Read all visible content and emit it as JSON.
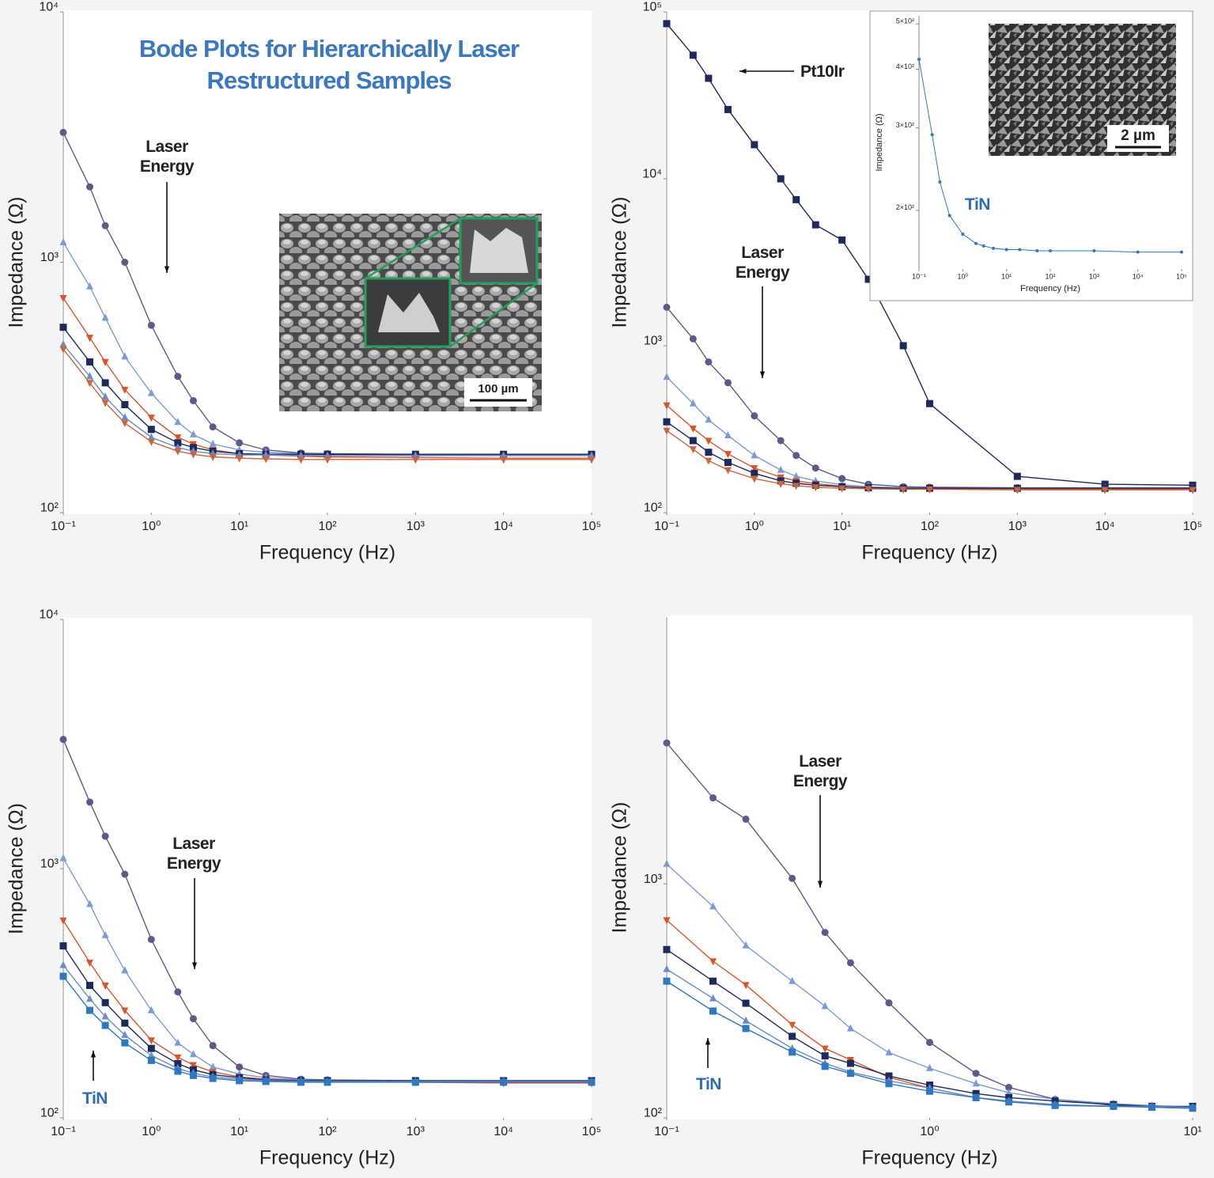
{
  "chart_data": [
    {
      "type": "line",
      "title": "Bode Plots for Hierarchically Laser Restructured Samples",
      "xlabel": "Frequency (Hz)",
      "ylabel": "Impedance (Ω)",
      "xscale": "log",
      "yscale": "log",
      "xlim": [
        0.1,
        100000
      ],
      "ylim": [
        100,
        10000
      ],
      "xticks": [
        {
          "value": 0.1,
          "label": "10⁻¹"
        },
        {
          "value": 1,
          "label": "10⁰"
        },
        {
          "value": 10,
          "label": "10¹"
        },
        {
          "value": 100,
          "label": "10²"
        },
        {
          "value": 1000,
          "label": "10³"
        },
        {
          "value": 10000,
          "label": "10⁴"
        },
        {
          "value": 100000,
          "label": "10⁵"
        }
      ],
      "yticks": [
        {
          "value": 100,
          "label": "10²"
        },
        {
          "value": 1000,
          "label": "10³"
        },
        {
          "value": 10000,
          "label": "10⁴"
        }
      ],
      "annotations": [
        "Laser Energy"
      ],
      "image_scale_label": "100 µm",
      "x": [
        0.1,
        0.2,
        0.3,
        0.5,
        1,
        2,
        3,
        5,
        10,
        20,
        50,
        100,
        1000,
        10000,
        100000
      ],
      "series": [
        {
          "color": "#5d5a8a",
          "marker": "circle",
          "values": [
            3300,
            2000,
            1400,
            1000,
            560,
            350,
            280,
            220,
            190,
            178,
            173,
            172,
            171,
            170,
            170
          ]
        },
        {
          "color": "#7a9bd6",
          "marker": "triangle-up",
          "values": [
            1200,
            800,
            600,
            420,
            300,
            230,
            205,
            188,
            178,
            174,
            172,
            171,
            170,
            170,
            170
          ]
        },
        {
          "color": "#d9542b",
          "marker": "triangle-down",
          "values": [
            720,
            500,
            400,
            310,
            240,
            200,
            188,
            178,
            172,
            170,
            168,
            167,
            166,
            165,
            165
          ]
        },
        {
          "color": "#1f2a5c",
          "marker": "square",
          "values": [
            550,
            400,
            330,
            270,
            215,
            190,
            182,
            176,
            172,
            171,
            171,
            171,
            171,
            171,
            171
          ]
        },
        {
          "color": "#6d8bc9",
          "marker": "triangle-up",
          "values": [
            470,
            350,
            290,
            240,
            200,
            182,
            176,
            172,
            170,
            170,
            169,
            169,
            169,
            169,
            169
          ]
        },
        {
          "color": "#c9663f",
          "marker": "triangle-down",
          "values": [
            450,
            330,
            275,
            228,
            192,
            176,
            171,
            167,
            165,
            164,
            163,
            163,
            163,
            163,
            163
          ]
        }
      ]
    },
    {
      "type": "line",
      "xlabel": "Frequency (Hz)",
      "ylabel": "Impedance (Ω)",
      "xscale": "log",
      "yscale": "log",
      "xlim": [
        0.1,
        100000
      ],
      "ylim": [
        100,
        100000
      ],
      "xticks": [
        {
          "value": 0.1,
          "label": "10⁻¹"
        },
        {
          "value": 1,
          "label": "10⁰"
        },
        {
          "value": 10,
          "label": "10¹"
        },
        {
          "value": 100,
          "label": "10²"
        },
        {
          "value": 1000,
          "label": "10³"
        },
        {
          "value": 10000,
          "label": "10⁴"
        },
        {
          "value": 100000,
          "label": "10⁵"
        }
      ],
      "yticks": [
        {
          "value": 100,
          "label": "10²"
        },
        {
          "value": 1000,
          "label": "10³"
        },
        {
          "value": 10000,
          "label": "10⁴"
        },
        {
          "value": 100000,
          "label": "10⁵"
        }
      ],
      "annotations": [
        "Pt10Ir",
        "Laser Energy"
      ],
      "x": [
        0.1,
        0.2,
        0.3,
        0.5,
        1,
        2,
        3,
        5,
        10,
        20,
        50,
        100,
        1000,
        10000,
        100000
      ],
      "series": [
        {
          "color": "#1f2a5c",
          "marker": "square",
          "values": [
            85000,
            55000,
            40000,
            26000,
            16000,
            10000,
            7500,
            5300,
            4300,
            2500,
            1000,
            450,
            165,
            148,
            146
          ]
        },
        {
          "color": "#5d5a8a",
          "marker": "circle",
          "values": [
            1700,
            1100,
            800,
            600,
            380,
            270,
            220,
            185,
            160,
            148,
            143,
            142,
            141,
            141,
            141
          ]
        },
        {
          "color": "#7a9bd6",
          "marker": "triangle-up",
          "values": [
            650,
            450,
            360,
            290,
            220,
            180,
            165,
            155,
            147,
            143,
            141,
            140,
            140,
            140,
            140
          ]
        },
        {
          "color": "#d9542b",
          "marker": "triangle-down",
          "values": [
            440,
            320,
            270,
            225,
            185,
            163,
            155,
            149,
            144,
            141,
            140,
            139,
            138,
            138,
            138
          ]
        },
        {
          "color": "#1f2a5c",
          "marker": "square",
          "values": [
            350,
            270,
            230,
            200,
            172,
            155,
            150,
            146,
            143,
            141,
            140,
            140,
            140,
            140,
            140
          ]
        },
        {
          "color": "#c9663f",
          "marker": "triangle-down",
          "values": [
            310,
            240,
            205,
            180,
            160,
            149,
            145,
            142,
            140,
            139,
            138,
            138,
            137,
            137,
            137
          ]
        }
      ],
      "inset": {
        "type": "line",
        "xlabel": "Frequency (Hz)",
        "ylabel": "Impedance (Ω)",
        "xscale": "log",
        "yscale": "log",
        "xlim": [
          0.1,
          100000
        ],
        "ylim": [
          150,
          520
        ],
        "xticks": [
          {
            "value": 0.1,
            "label": "10⁻¹"
          },
          {
            "value": 1,
            "label": "10⁰"
          },
          {
            "value": 10,
            "label": "10¹"
          },
          {
            "value": 100,
            "label": "10²"
          },
          {
            "value": 1000,
            "label": "10³"
          },
          {
            "value": 10000,
            "label": "10⁴"
          },
          {
            "value": 100000,
            "label": "10⁵"
          }
        ],
        "yticks": [
          {
            "value": 200,
            "label": "2×10²"
          },
          {
            "value": 300,
            "label": "3×10²"
          },
          {
            "value": 400,
            "label": "4×10²"
          },
          {
            "value": 500,
            "label": "5×10²"
          }
        ],
        "annotations": [
          "TiN"
        ],
        "image_scale_label": "2 µm",
        "x": [
          0.1,
          0.2,
          0.3,
          0.5,
          1,
          2,
          3,
          5,
          10,
          20,
          50,
          100,
          1000,
          10000,
          100000
        ],
        "series": [
          {
            "color": "#2e78c0",
            "marker": "circle",
            "values": [
              420,
              290,
              230,
              195,
              178,
              170,
              168,
              166,
              165,
              165,
              164,
              164,
              164,
              163,
              163
            ]
          }
        ]
      }
    },
    {
      "type": "line",
      "xlabel": "Frequency (Hz)",
      "ylabel": "Impedance (Ω)",
      "xscale": "log",
      "yscale": "log",
      "xlim": [
        0.1,
        100000
      ],
      "ylim": [
        100,
        10000
      ],
      "xticks": [
        {
          "value": 0.1,
          "label": "10⁻¹"
        },
        {
          "value": 1,
          "label": "10⁰"
        },
        {
          "value": 10,
          "label": "10¹"
        },
        {
          "value": 100,
          "label": "10²"
        },
        {
          "value": 1000,
          "label": "10³"
        },
        {
          "value": 10000,
          "label": "10⁴"
        },
        {
          "value": 100000,
          "label": "10⁵"
        }
      ],
      "yticks": [
        {
          "value": 100,
          "label": "10²"
        },
        {
          "value": 1000,
          "label": "10³"
        },
        {
          "value": 10000,
          "label": "10⁴"
        }
      ],
      "annotations": [
        "Laser Energy",
        "TiN"
      ],
      "x": [
        0.1,
        0.2,
        0.3,
        0.5,
        1,
        2,
        3,
        5,
        10,
        20,
        50,
        100,
        1000,
        10000,
        100000
      ],
      "series": [
        {
          "color": "#5d5a8a",
          "marker": "circle",
          "values": [
            3300,
            1850,
            1350,
            950,
            520,
            320,
            250,
            195,
            160,
            148,
            143,
            142,
            141,
            140,
            140
          ]
        },
        {
          "color": "#7a9bd6",
          "marker": "triangle-up",
          "values": [
            1100,
            720,
            540,
            390,
            270,
            200,
            180,
            160,
            150,
            145,
            142,
            141,
            140,
            140,
            140
          ]
        },
        {
          "color": "#d9542b",
          "marker": "triangle-down",
          "values": [
            620,
            420,
            340,
            270,
            205,
            175,
            163,
            153,
            146,
            143,
            141,
            140,
            139,
            138,
            138
          ]
        },
        {
          "color": "#1f2a5c",
          "marker": "square",
          "values": [
            490,
            340,
            290,
            240,
            190,
            165,
            156,
            149,
            145,
            142,
            141,
            141,
            141,
            141,
            141
          ]
        },
        {
          "color": "#6d8bc9",
          "marker": "triangle-up",
          "values": [
            410,
            300,
            255,
            215,
            178,
            158,
            151,
            146,
            143,
            141,
            140,
            140,
            140,
            140,
            140
          ]
        },
        {
          "color": "#2e78c0",
          "marker": "square",
          "values": [
            370,
            270,
            235,
            200,
            170,
            154,
            148,
            144,
            141,
            140,
            139,
            139,
            139,
            139,
            139
          ]
        }
      ]
    },
    {
      "type": "line",
      "xlabel": "Frequency (Hz)",
      "ylabel": "Impedance (Ω)",
      "xscale": "log",
      "yscale": "log",
      "xlim": [
        0.1,
        10
      ],
      "ylim": [
        100,
        13800
      ],
      "xticks": [
        {
          "value": 0.1,
          "label": "10⁻¹"
        },
        {
          "value": 1,
          "label": "10⁰"
        },
        {
          "value": 10,
          "label": "10¹"
        }
      ],
      "yticks": [
        {
          "value": 100,
          "label": "10²"
        },
        {
          "value": 1000,
          "label": "10³"
        }
      ],
      "annotations": [
        "Laser Energy",
        "TiN"
      ],
      "x": [
        0.1,
        0.15,
        0.2,
        0.3,
        0.4,
        0.5,
        0.7,
        1,
        1.5,
        2,
        3,
        5,
        7,
        10
      ],
      "series": [
        {
          "color": "#5d5a8a",
          "marker": "circle",
          "values": [
            4000,
            2330,
            1890,
            1055,
            620,
            460,
            310,
            210,
            155,
            135,
            120,
            113,
            111,
            110
          ]
        },
        {
          "color": "#7a9bd6",
          "marker": "triangle-up",
          "values": [
            1215,
            800,
            545,
            384,
            300,
            241,
            190,
            163,
            140,
            128,
            120,
            115,
            113,
            111
          ]
        },
        {
          "color": "#d9542b",
          "marker": "triangle-down",
          "values": [
            700,
            467,
            370,
            250,
            198,
            177,
            149,
            134,
            122,
            118,
            114,
            112,
            112,
            111
          ]
        },
        {
          "color": "#1f2a5c",
          "marker": "square",
          "values": [
            524,
            384,
            309,
            223,
            184,
            171,
            151,
            138,
            127,
            122,
            118,
            114,
            112,
            112
          ]
        },
        {
          "color": "#6d8bc9",
          "marker": "triangle-up",
          "values": [
            432,
            324,
            260,
            198,
            171,
            157,
            144,
            134,
            122,
            118,
            114,
            112,
            112,
            111
          ]
        },
        {
          "color": "#2e78c0",
          "marker": "square",
          "values": [
            384,
            286,
            241,
            191,
            166,
            155,
            140,
            130,
            122,
            117,
            113,
            112,
            111,
            110
          ]
        }
      ]
    }
  ]
}
